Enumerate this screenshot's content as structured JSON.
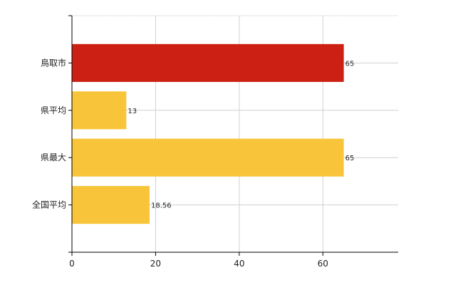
{
  "chart_data": {
    "type": "bar",
    "orientation": "horizontal",
    "categories": [
      "鳥取市",
      "県平均",
      "県最大",
      "全国平均"
    ],
    "values": [
      65,
      13,
      65,
      18.56
    ],
    "value_labels": [
      "65",
      "13",
      "65",
      "18.56"
    ],
    "x_ticks": [
      0,
      20,
      40,
      60
    ],
    "xlim": [
      0,
      78
    ],
    "grid": true,
    "legend": "none",
    "title": "",
    "xlabel": "",
    "ylabel": "",
    "colors": [
      "#cc2014",
      "#f8c53a",
      "#f8c53a",
      "#f8c53a"
    ],
    "highlight_color": "#cc2014",
    "base_color": "#f8c53a"
  }
}
